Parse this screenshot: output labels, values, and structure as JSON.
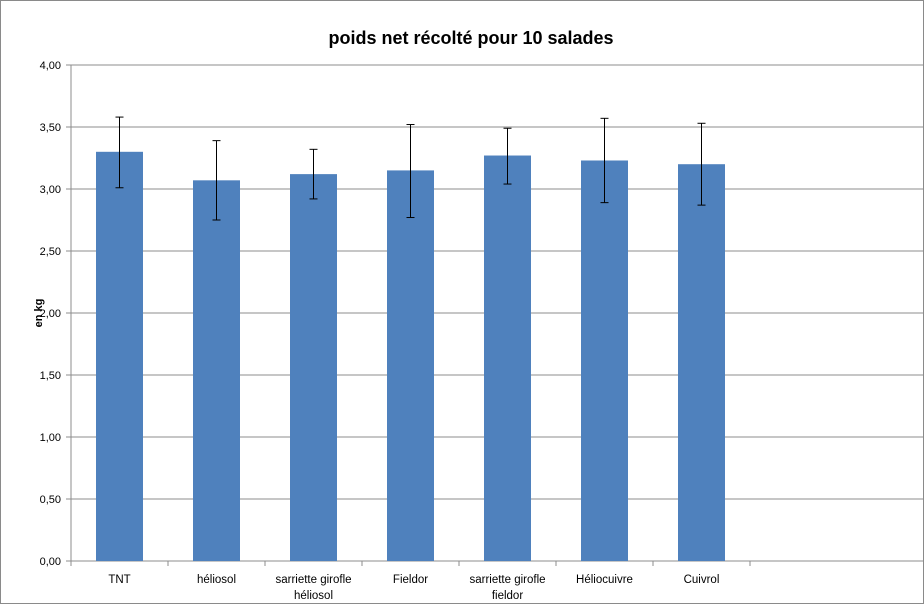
{
  "chart_data": {
    "type": "bar",
    "title": "poids net récolté pour 10 salades",
    "xlabel": "",
    "ylabel": "en kg",
    "ylim": [
      0,
      4
    ],
    "yticks": [
      "0,00",
      "0,50",
      "1,00",
      "1,50",
      "2,00",
      "2,50",
      "3,00",
      "3,50",
      "4,00"
    ],
    "grid": true,
    "categories": [
      [
        "TNT"
      ],
      [
        "héliosol"
      ],
      [
        "sarriette girofle",
        "héliosol"
      ],
      [
        "Fieldor"
      ],
      [
        "sarriette girofle",
        "fieldor"
      ],
      [
        "Héliocuivre"
      ],
      [
        "Cuivrol"
      ]
    ],
    "series": [
      {
        "values": [
          3.3,
          3.07,
          3.12,
          3.15,
          3.27,
          3.23,
          3.2
        ],
        "error_low": [
          3.01,
          2.75,
          2.92,
          2.77,
          3.04,
          2.89,
          2.87
        ],
        "error_high": [
          3.58,
          3.39,
          3.32,
          3.52,
          3.49,
          3.57,
          3.53
        ],
        "color": "#4f81bd"
      }
    ]
  }
}
